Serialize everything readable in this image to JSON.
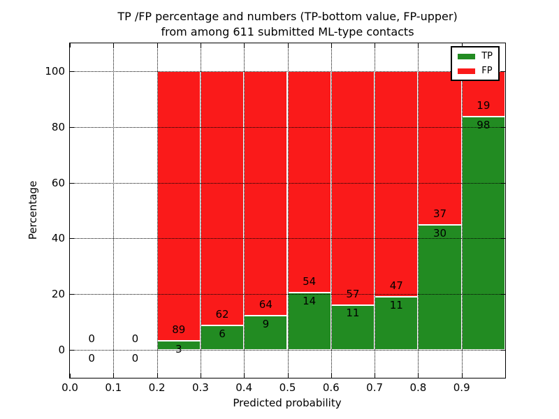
{
  "chart_data": {
    "type": "bar",
    "stacked": true,
    "normalized": "percent of bin total",
    "title": "TP /FP percentage and numbers (TP-bottom value, FP-upper) from among 611 submitted ML-type contacts",
    "title_line1": "TP /FP percentage and numbers (TP-bottom value, FP-upper)",
    "title_line2": "from among 611 submitted ML-type contacts",
    "xlabel": "Predicted probability",
    "ylabel": "Percentage",
    "xlim": [
      0.0,
      1.0
    ],
    "ylim": [
      -10,
      110
    ],
    "grid": "dotted",
    "total_contacts": 611,
    "xticks": [
      {
        "label": "0.0",
        "value": 0.0
      },
      {
        "label": "0.1",
        "value": 0.1
      },
      {
        "label": "0.2",
        "value": 0.2
      },
      {
        "label": "0.3",
        "value": 0.3
      },
      {
        "label": "0.4",
        "value": 0.4
      },
      {
        "label": "0.5",
        "value": 0.5
      },
      {
        "label": "0.6",
        "value": 0.6
      },
      {
        "label": "0.7",
        "value": 0.7
      },
      {
        "label": "0.8",
        "value": 0.8
      },
      {
        "label": "0.9",
        "value": 0.9
      }
    ],
    "yticks": [
      {
        "label": "0",
        "value": 0
      },
      {
        "label": "20",
        "value": 20
      },
      {
        "label": "40",
        "value": 40
      },
      {
        "label": "60",
        "value": 60
      },
      {
        "label": "80",
        "value": 80
      },
      {
        "label": "100",
        "value": 100
      }
    ],
    "legend": {
      "position": "upper-right",
      "entries": [
        {
          "label": "TP",
          "color": "#228b22"
        },
        {
          "label": "FP",
          "color": "#fa1a1a"
        }
      ]
    },
    "bins": [
      {
        "range": [
          0.0,
          0.1
        ],
        "tp": 0,
        "fp": 0,
        "tp_percent": 0,
        "fp_percent": 0
      },
      {
        "range": [
          0.1,
          0.2
        ],
        "tp": 0,
        "fp": 0,
        "tp_percent": 0,
        "fp_percent": 0
      },
      {
        "range": [
          0.2,
          0.3
        ],
        "tp": 3,
        "fp": 89,
        "tp_percent": 3.3,
        "fp_percent": 96.7
      },
      {
        "range": [
          0.3,
          0.4
        ],
        "tp": 6,
        "fp": 62,
        "tp_percent": 8.8,
        "fp_percent": 91.2
      },
      {
        "range": [
          0.4,
          0.5
        ],
        "tp": 9,
        "fp": 64,
        "tp_percent": 12.3,
        "fp_percent": 87.7
      },
      {
        "range": [
          0.5,
          0.6
        ],
        "tp": 14,
        "fp": 54,
        "tp_percent": 20.6,
        "fp_percent": 79.4
      },
      {
        "range": [
          0.6,
          0.7
        ],
        "tp": 11,
        "fp": 57,
        "tp_percent": 16.2,
        "fp_percent": 83.8
      },
      {
        "range": [
          0.7,
          0.8
        ],
        "tp": 11,
        "fp": 47,
        "tp_percent": 19.0,
        "fp_percent": 81.0
      },
      {
        "range": [
          0.8,
          0.9
        ],
        "tp": 30,
        "fp": 37,
        "tp_percent": 44.8,
        "fp_percent": 55.2
      },
      {
        "range": [
          0.9,
          1.0
        ],
        "tp": 98,
        "fp": 19,
        "tp_percent": 83.8,
        "fp_percent": 16.2
      }
    ]
  },
  "colors": {
    "tp_green": "#228b22",
    "fp_red": "#fa1a1a",
    "grid": "#000000",
    "background": "#ffffff",
    "text": "#000000"
  }
}
